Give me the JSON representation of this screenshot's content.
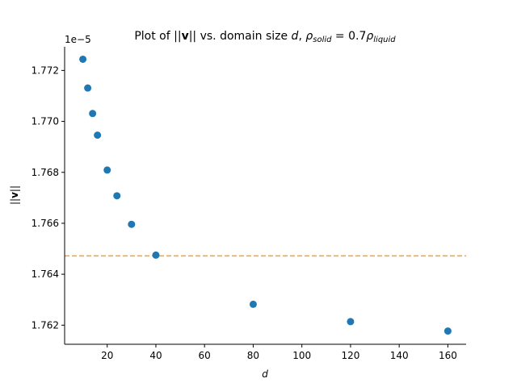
{
  "chart_data": {
    "type": "scatter",
    "title": "Plot of ||v|| vs. domain size d, ρsolid = 0.7ρliquid",
    "title_parts": {
      "prefix": "Plot of ||",
      "bold": "v",
      "middle": "|| vs. domain size ",
      "var": "d",
      "comma": ", ",
      "rho1": "ρ",
      "sub1": "solid",
      "eq": " = 0.7",
      "rho2": "ρ",
      "sub2": "liquid"
    },
    "xlabel": "d",
    "ylabel_parts": {
      "left": "||",
      "bold": "v",
      "right": "||"
    },
    "offset_text": "1e−5",
    "xlim": [
      2.5,
      167.5
    ],
    "ylim": [
      1.76125,
      1.77293
    ],
    "x_ticks": [
      20,
      40,
      60,
      80,
      100,
      120,
      140,
      160
    ],
    "x_tick_labels": [
      "20",
      "40",
      "60",
      "80",
      "100",
      "120",
      "140",
      "160"
    ],
    "y_ticks": [
      1.762,
      1.764,
      1.766,
      1.768,
      1.77,
      1.772
    ],
    "y_tick_labels": [
      "1.762",
      "1.764",
      "1.766",
      "1.768",
      "1.770",
      "1.772"
    ],
    "grid": false,
    "series": [
      {
        "x": [
          10,
          12,
          14,
          16,
          20,
          24,
          30,
          40,
          80,
          120,
          160
        ],
        "y": [
          1.77244,
          1.77131,
          1.77031,
          1.76946,
          1.76809,
          1.76708,
          1.76596,
          1.76475,
          1.76282,
          1.76214,
          1.76177
        ],
        "color": "#1f77b4"
      }
    ],
    "reference_line": {
      "y": 1.76472,
      "color": "#ff9f1c",
      "style": "dashed"
    }
  }
}
